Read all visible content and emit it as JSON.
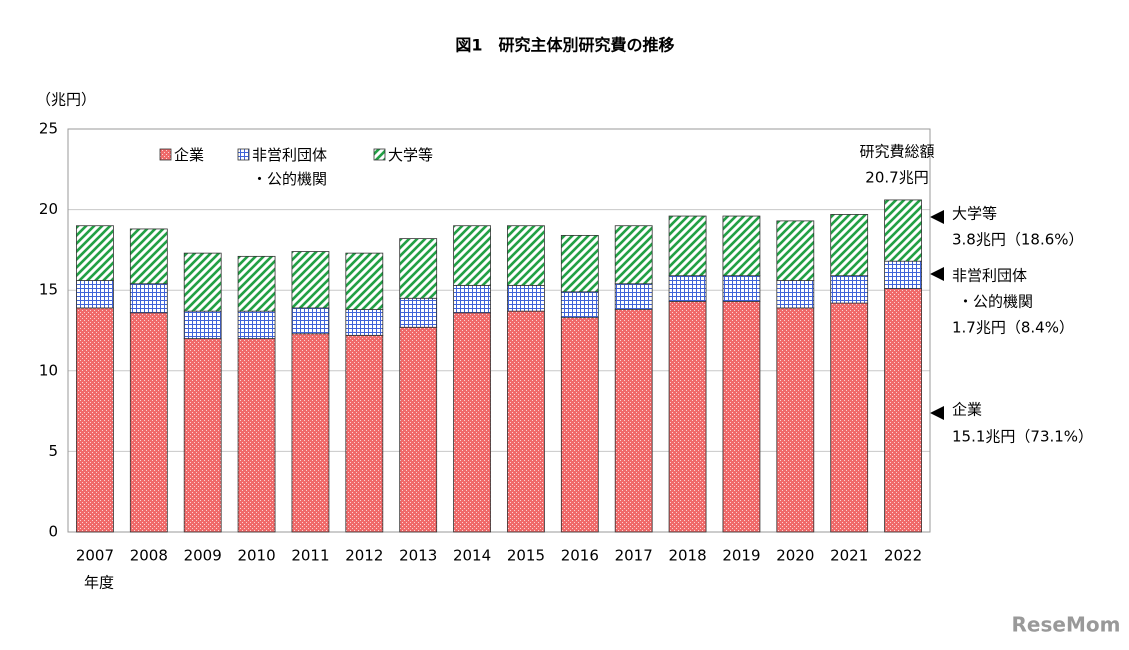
{
  "chart_data": {
    "type": "stacked_bar",
    "title": "図1　研究主体別研究費の推移",
    "y_label": "（兆円）",
    "x_label": "年度",
    "categories": [
      "2007",
      "2008",
      "2009",
      "2010",
      "2011",
      "2012",
      "2013",
      "2014",
      "2015",
      "2016",
      "2017",
      "2018",
      "2019",
      "2020",
      "2021",
      "2022"
    ],
    "series": [
      {
        "name": "企業",
        "color": "#f06a6a",
        "pattern": "dots",
        "values": [
          13.9,
          13.6,
          12.0,
          12.0,
          12.3,
          12.2,
          12.7,
          13.6,
          13.7,
          13.3,
          13.8,
          14.3,
          14.3,
          13.9,
          14.2,
          15.1
        ]
      },
      {
        "name": "非営利団体\n・公的機関",
        "color": "#3f63d8",
        "pattern": "grid",
        "values": [
          1.7,
          1.8,
          1.7,
          1.7,
          1.6,
          1.6,
          1.8,
          1.7,
          1.6,
          1.6,
          1.6,
          1.6,
          1.6,
          1.7,
          1.7,
          1.7
        ]
      },
      {
        "name": "大学等",
        "color": "#22a045",
        "pattern": "hatch",
        "values": [
          3.4,
          3.4,
          3.6,
          3.4,
          3.5,
          3.5,
          3.7,
          3.7,
          3.7,
          3.5,
          3.6,
          3.7,
          3.7,
          3.7,
          3.8,
          3.8
        ]
      }
    ],
    "ylim": [
      0,
      25
    ],
    "yticks": [
      0,
      5,
      10,
      15,
      20,
      25
    ],
    "grid": true,
    "annotations": [
      "研究費総額",
      "20.7兆円",
      "大学等",
      "3.8兆円（18.6%）",
      "非営利団体",
      "・公的機関",
      "1.7兆円（8.4%）",
      "企業",
      "15.1兆円（73.1%）"
    ],
    "watermark": "ReseMom"
  }
}
